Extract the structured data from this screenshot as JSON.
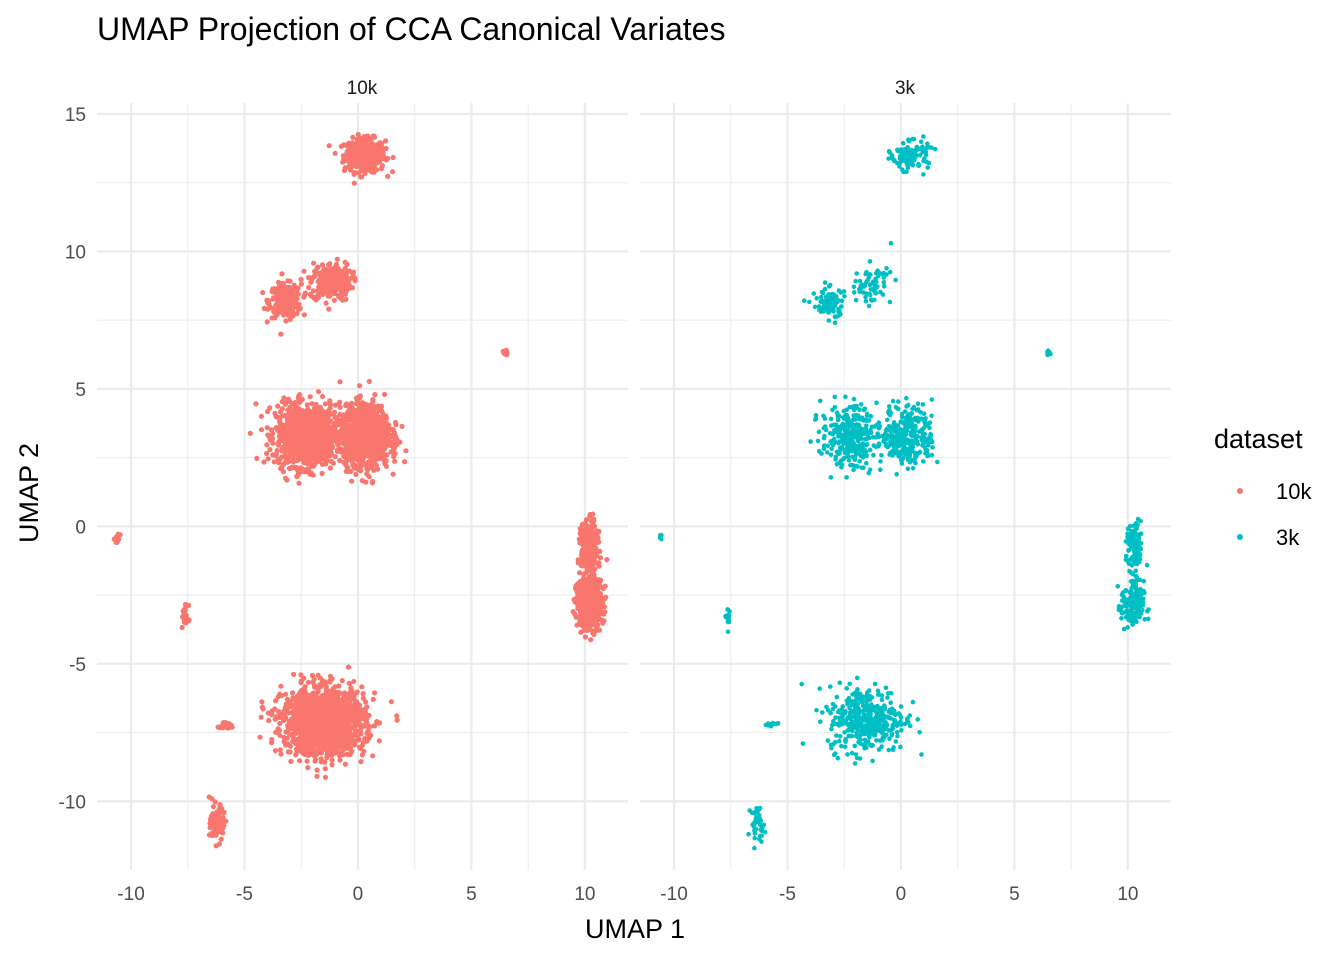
{
  "chart_data": {
    "type": "scatter",
    "title": "UMAP Projection of CCA Canonical Variates",
    "xlabel": "UMAP 1",
    "ylabel": "UMAP 2",
    "xlim": [
      -11.5,
      11.9
    ],
    "ylim": [
      -12.5,
      15.4
    ],
    "x_ticks": [
      -10,
      -5,
      0,
      5,
      10
    ],
    "x_tick_labels": [
      "-10",
      "-5",
      "0",
      "5",
      "10"
    ],
    "y_ticks": [
      15,
      10,
      5,
      0,
      -5,
      -10
    ],
    "y_tick_labels": [
      "15",
      "10",
      "5",
      "0",
      "-5",
      "-10"
    ],
    "grid": true,
    "legend": {
      "title": "dataset",
      "placement": "right",
      "entries": [
        {
          "label": "10k",
          "color": "#F8766D"
        },
        {
          "label": "3k",
          "color": "#00BFC4"
        }
      ]
    },
    "facets": [
      {
        "label": "10k",
        "series": "10k",
        "color": "#F8766D",
        "density": "dense",
        "clusters": [
          {
            "cx": 0.3,
            "cy": 13.5,
            "sx": 0.45,
            "sy": 0.3,
            "n": 360
          },
          {
            "cx": -3.2,
            "cy": 8.2,
            "sx": 0.35,
            "sy": 0.3,
            "n": 260
          },
          {
            "cx": -1.2,
            "cy": 8.9,
            "sx": 0.45,
            "sy": 0.35,
            "n": 220
          },
          {
            "cx": 6.5,
            "cy": 6.3,
            "sx": 0.05,
            "sy": 0.05,
            "n": 20
          },
          {
            "cx": -2.3,
            "cy": 3.3,
            "sx": 0.65,
            "sy": 0.55,
            "n": 1100
          },
          {
            "cx": 0.3,
            "cy": 3.3,
            "sx": 0.55,
            "sy": 0.55,
            "n": 1100
          },
          {
            "cx": -10.6,
            "cy": -0.45,
            "sx": 0.05,
            "sy": 0.07,
            "n": 15
          },
          {
            "cx": -7.6,
            "cy": -3.3,
            "sx": 0.07,
            "sy": 0.22,
            "n": 25
          },
          {
            "cx": 10.2,
            "cy": -0.8,
            "sx": 0.18,
            "sy": 0.45,
            "n": 380
          },
          {
            "cx": 10.2,
            "cy": -2.8,
            "sx": 0.28,
            "sy": 0.45,
            "n": 550
          },
          {
            "cx": -1.5,
            "cy": -7.1,
            "sx": 0.9,
            "sy": 0.6,
            "n": 1500
          },
          {
            "cx": -5.8,
            "cy": -7.25,
            "sx": 0.2,
            "sy": 0.05,
            "n": 30
          },
          {
            "cx": -6.2,
            "cy": -10.8,
            "sx": 0.15,
            "sy": 0.3,
            "n": 110
          }
        ]
      },
      {
        "label": "3k",
        "series": "3k",
        "color": "#00BFC4",
        "density": "sparse",
        "clusters": [
          {
            "cx": 0.4,
            "cy": 13.5,
            "sx": 0.4,
            "sy": 0.25,
            "n": 110
          },
          {
            "cx": -3.2,
            "cy": 8.1,
            "sx": 0.35,
            "sy": 0.3,
            "n": 80
          },
          {
            "cx": -1.3,
            "cy": 8.8,
            "sx": 0.45,
            "sy": 0.35,
            "n": 70
          },
          {
            "cx": 6.5,
            "cy": 6.3,
            "sx": 0.04,
            "sy": 0.05,
            "n": 8
          },
          {
            "cx": -2.3,
            "cy": 3.3,
            "sx": 0.6,
            "sy": 0.55,
            "n": 300
          },
          {
            "cx": 0.3,
            "cy": 3.3,
            "sx": 0.55,
            "sy": 0.55,
            "n": 300
          },
          {
            "cx": -10.6,
            "cy": -0.4,
            "sx": 0.04,
            "sy": 0.06,
            "n": 6
          },
          {
            "cx": -7.6,
            "cy": -3.3,
            "sx": 0.07,
            "sy": 0.22,
            "n": 12
          },
          {
            "cx": 10.3,
            "cy": -0.8,
            "sx": 0.18,
            "sy": 0.45,
            "n": 110
          },
          {
            "cx": 10.2,
            "cy": -2.9,
            "sx": 0.25,
            "sy": 0.45,
            "n": 150
          },
          {
            "cx": -1.5,
            "cy": -7.0,
            "sx": 0.85,
            "sy": 0.6,
            "n": 380
          },
          {
            "cx": -5.8,
            "cy": -7.2,
            "sx": 0.2,
            "sy": 0.05,
            "n": 10
          },
          {
            "cx": -6.3,
            "cy": -10.8,
            "sx": 0.15,
            "sy": 0.3,
            "n": 40
          }
        ]
      }
    ]
  }
}
